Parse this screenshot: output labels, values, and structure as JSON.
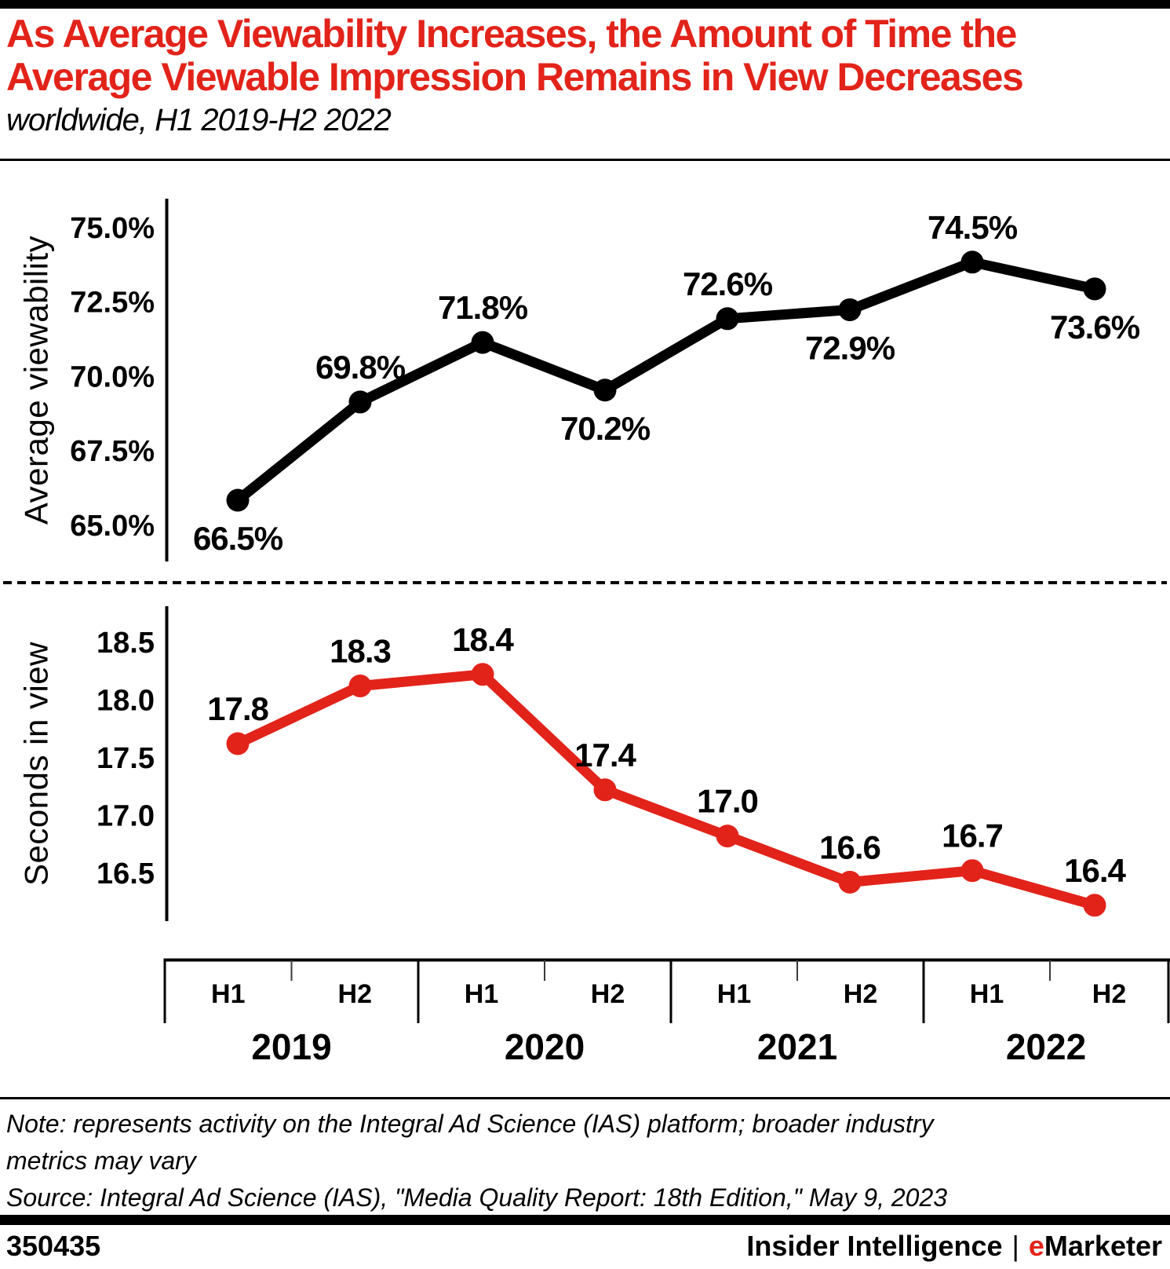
{
  "page": {
    "title_lines": [
      "As Average Viewability Increases, the Amount of Time the",
      "Average Viewable Impression Remains in View Decreases"
    ],
    "subtitle": "worldwide, H1 2019-H2 2022"
  },
  "chart_data": [
    {
      "type": "line",
      "series_name": "Average viewability",
      "axis_label": "Average viewability",
      "x": [
        "H1 2019",
        "H2 2019",
        "H1 2020",
        "H2 2020",
        "H1 2021",
        "H2 2021",
        "H1 2022",
        "H2 2022"
      ],
      "values": [
        66.5,
        69.8,
        71.8,
        70.2,
        72.6,
        72.9,
        74.5,
        73.6
      ],
      "point_labels": [
        "66.5%",
        "69.8%",
        "71.8%",
        "70.2%",
        "72.6%",
        "72.9%",
        "74.5%",
        "73.6%"
      ],
      "label_side": [
        "below",
        "above",
        "above",
        "below",
        "above",
        "below",
        "above",
        "below"
      ],
      "yticks": [
        75.0,
        72.5,
        70.0,
        67.5,
        65.0
      ],
      "ytick_labels": [
        "75.0%",
        "72.5%",
        "70.0%",
        "67.5%",
        "65.0%"
      ],
      "ylim": [
        64.5,
        75.5
      ],
      "color": "#000000",
      "grid": false,
      "legend": "none"
    },
    {
      "type": "line",
      "series_name": "Seconds in view",
      "axis_label": "Seconds in view",
      "x": [
        "H1 2019",
        "H2 2019",
        "H1 2020",
        "H2 2020",
        "H1 2021",
        "H2 2021",
        "H1 2022",
        "H2 2022"
      ],
      "values": [
        17.8,
        18.3,
        18.4,
        17.4,
        17.0,
        16.6,
        16.7,
        16.4
      ],
      "point_labels": [
        "17.8",
        "18.3",
        "18.4",
        "17.4",
        "17.0",
        "16.6",
        "16.7",
        "16.4"
      ],
      "label_side": [
        "above",
        "above",
        "above",
        "above",
        "above",
        "above",
        "above",
        "above"
      ],
      "yticks": [
        18.5,
        18.0,
        17.5,
        17.0,
        16.5
      ],
      "ytick_labels": [
        "18.5",
        "18.0",
        "17.5",
        "17.0",
        "16.5"
      ],
      "ylim": [
        16.2,
        18.7
      ],
      "color": "#E2231A",
      "grid": false,
      "legend": "none"
    }
  ],
  "xaxis": {
    "years": [
      "2019",
      "2020",
      "2021",
      "2022"
    ],
    "half_labels": [
      "H1",
      "H2"
    ]
  },
  "note_lines": [
    "Note: represents activity on the Integral Ad Science (IAS) platform; broader industry",
    "metrics may vary"
  ],
  "source_line": "Source: Integral Ad Science (IAS), \"Media Quality Report: 18th Edition,\" May 9, 2023",
  "footer": {
    "chart_id": "350435",
    "brand_primary": "Insider Intelligence",
    "separator": "|",
    "brand_secondary_prefix": "e",
    "brand_secondary_rest": "Marketer"
  },
  "colors": {
    "accent_red": "#E2231A",
    "black": "#000000"
  }
}
